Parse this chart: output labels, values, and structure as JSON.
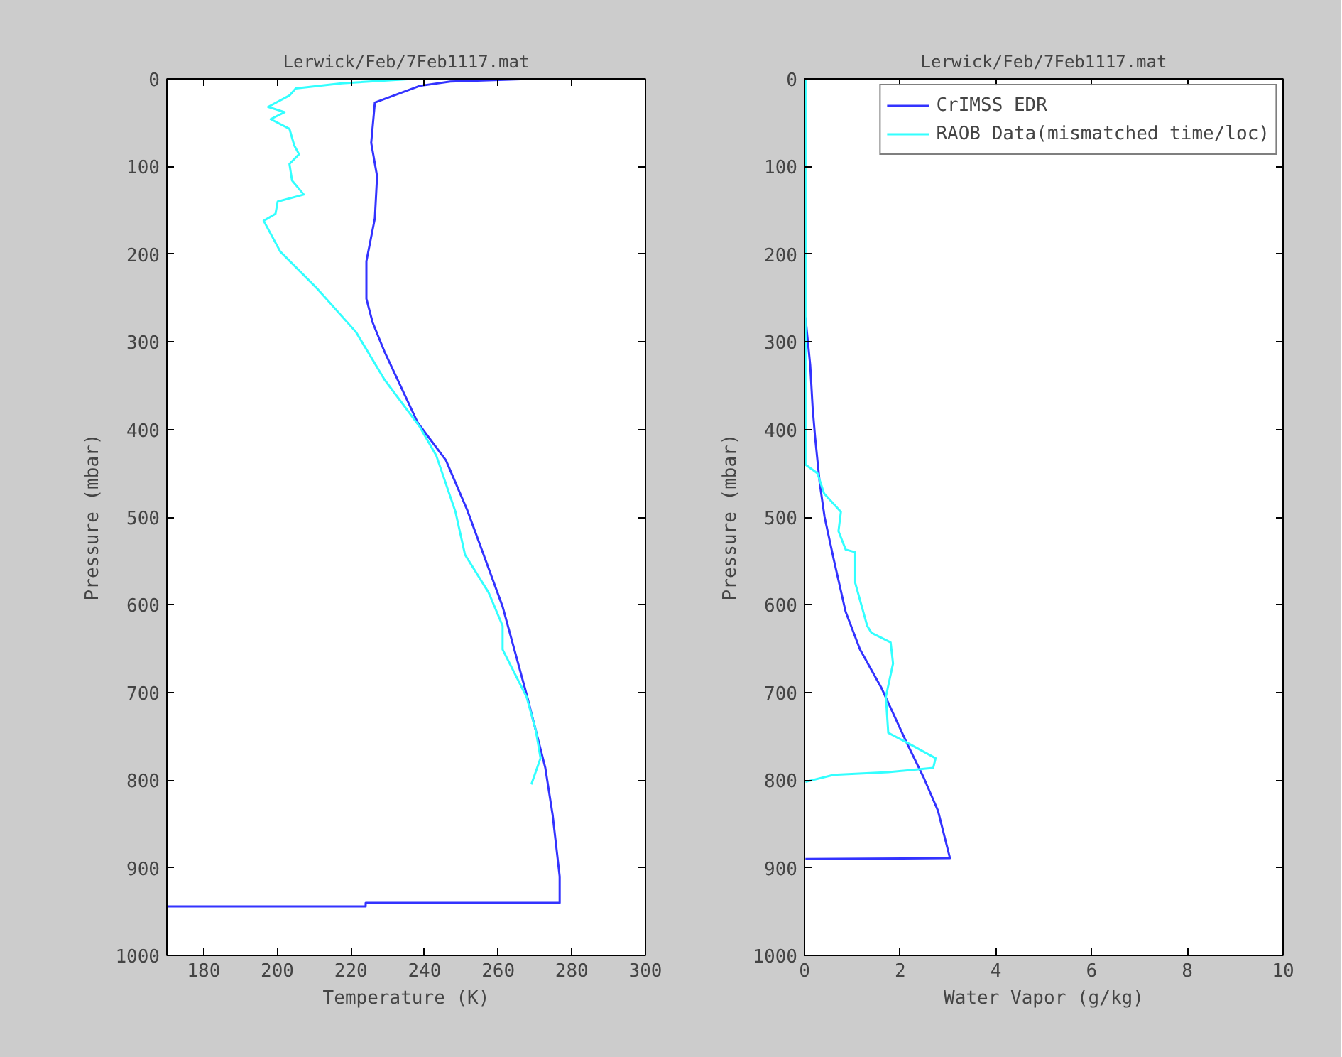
{
  "chart_data": [
    {
      "type": "line",
      "title": "Lerwick/Feb/7Feb1117.mat",
      "xlabel": "Temperature (K)",
      "ylabel": "Pressure (mbar)",
      "xlim": [
        170,
        300
      ],
      "xticks": [
        180,
        200,
        220,
        240,
        260,
        280,
        300
      ],
      "ylim": [
        1000,
        0
      ],
      "yticks": [
        0,
        100,
        200,
        300,
        400,
        500,
        600,
        700,
        800,
        900,
        1000
      ],
      "grid": false,
      "legend": false,
      "series": [
        {
          "color": "#3333ff",
          "x": [
            269,
            247,
            238.7,
            226.5,
            225.5,
            227.1,
            226.5,
            224.2,
            224.2,
            225.9,
            229.1,
            238.1,
            245.8,
            251.6,
            261.2,
            267.7,
            272.8,
            274.8,
            276.7,
            276.7,
            224,
            224,
            170
          ],
          "values": [
            0,
            3,
            8,
            27,
            73,
            111,
            159,
            208,
            251,
            278,
            311,
            392,
            435,
            492,
            602,
            702,
            786,
            840,
            910,
            940,
            940,
            944,
            944
          ]
        },
        {
          "color": "#33ffff",
          "x": [
            237,
            217.5,
            205,
            203.3,
            197.5,
            202,
            198.2,
            203.3,
            204.6,
            205.9,
            203.3,
            204,
            207.2,
            200.1,
            199.5,
            196.3,
            200.8,
            211,
            221.4,
            229.1,
            238.7,
            243.2,
            248.4,
            251,
            257.4,
            261.2,
            261.2,
            267.7,
            270.2,
            271.5,
            269
          ],
          "values": [
            0,
            5,
            11,
            19,
            32,
            38,
            46,
            57,
            76,
            86,
            97,
            116,
            132,
            140,
            154,
            162,
            197,
            240,
            289,
            343,
            397,
            430,
            494,
            543,
            586,
            624,
            651,
            705,
            743,
            775,
            805
          ]
        }
      ]
    },
    {
      "type": "line",
      "title": "Lerwick/Feb/7Feb1117.mat",
      "xlabel": "Water Vapor (g/kg)",
      "ylabel": "Pressure (mbar)",
      "xlim": [
        0,
        10
      ],
      "xticks": [
        0,
        2,
        4,
        6,
        8,
        10
      ],
      "ylim": [
        1000,
        0
      ],
      "yticks": [
        0,
        100,
        200,
        300,
        400,
        500,
        600,
        700,
        800,
        900,
        1000
      ],
      "grid": false,
      "legend": "top right",
      "series": [
        {
          "name": "CrIMSS EDR",
          "color": "#3333ff",
          "x": [
            0.02,
            0.12,
            0.17,
            0.22,
            0.32,
            0.42,
            0.61,
            0.86,
            1.16,
            1.6,
            2.15,
            2.49,
            2.79,
            3.04,
            0.02
          ],
          "values": [
            272,
            327,
            375,
            408,
            462,
            500,
            548,
            608,
            651,
            694,
            759,
            797,
            835,
            889,
            890
          ]
        },
        {
          "name": "RAOB Data(mismatched time/loc)",
          "color": "#33ffff",
          "x": [
            0.02,
            0.02,
            0.27,
            0.41,
            0.76,
            0.71,
            0.86,
            1.06,
            1.06,
            1.31,
            1.4,
            1.8,
            1.85,
            1.7,
            1.75,
            2.1,
            2.74,
            2.69,
            1.75,
            0.61,
            0.02
          ],
          "values": [
            0,
            440,
            450,
            473,
            494,
            516,
            537,
            540,
            575,
            624,
            632,
            643,
            667,
            705,
            746,
            756,
            775,
            786,
            791,
            794,
            802
          ]
        }
      ]
    }
  ]
}
